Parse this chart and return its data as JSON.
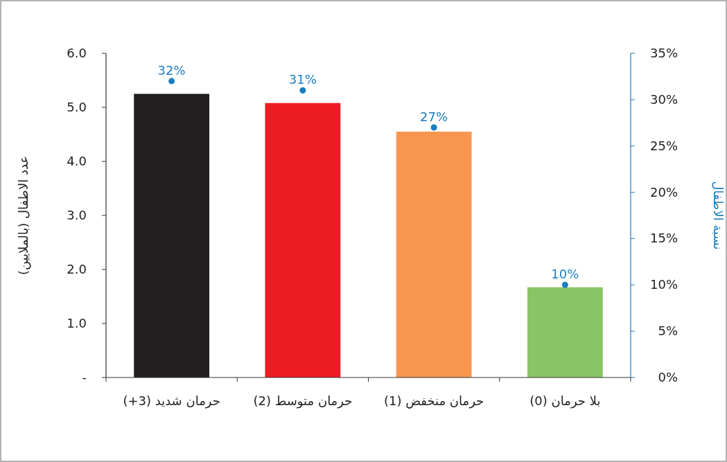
{
  "chart_data": {
    "type": "bar",
    "categories": [
      "حرمان شديد (3+)",
      "حرمان متوسط (2)",
      "حرمان منخفض (1)",
      "بلا حرمان (0)"
    ],
    "series": [
      {
        "colors": [
          "#231f20",
          "#ed1c24",
          "#f7964f",
          "#88c665"
        ],
        "values": [
          5.25,
          5.08,
          4.55,
          1.67
        ]
      },
      {
        "type": "scatter",
        "axis": "y2",
        "marker": "circle",
        "color": "#1a7dc0",
        "values": [
          32,
          31,
          27,
          10
        ],
        "value_labels": [
          "32%",
          "31%",
          "27%",
          "10%"
        ]
      }
    ],
    "ylabel": "عدد الاطفال (بالملايين)",
    "y2label": "نسبة الاطفال",
    "ylim": [
      0,
      6
    ],
    "yticks": [
      {
        "value": 0,
        "label": "-"
      },
      {
        "value": 1,
        "label": "1.0"
      },
      {
        "value": 2,
        "label": "2.0"
      },
      {
        "value": 3,
        "label": "3.0"
      },
      {
        "value": 4,
        "label": "4.0"
      },
      {
        "value": 5,
        "label": "5.0"
      },
      {
        "value": 6,
        "label": "6.0"
      }
    ],
    "y2lim": [
      0,
      35
    ],
    "y2ticks": [
      {
        "value": 0,
        "label": "0%"
      },
      {
        "value": 5,
        "label": "5%"
      },
      {
        "value": 10,
        "label": "10%"
      },
      {
        "value": 15,
        "label": "15%"
      },
      {
        "value": 20,
        "label": "20%"
      },
      {
        "value": 25,
        "label": "25%"
      },
      {
        "value": 30,
        "label": "30%"
      },
      {
        "value": 35,
        "label": "35%"
      }
    ],
    "grid": false
  }
}
